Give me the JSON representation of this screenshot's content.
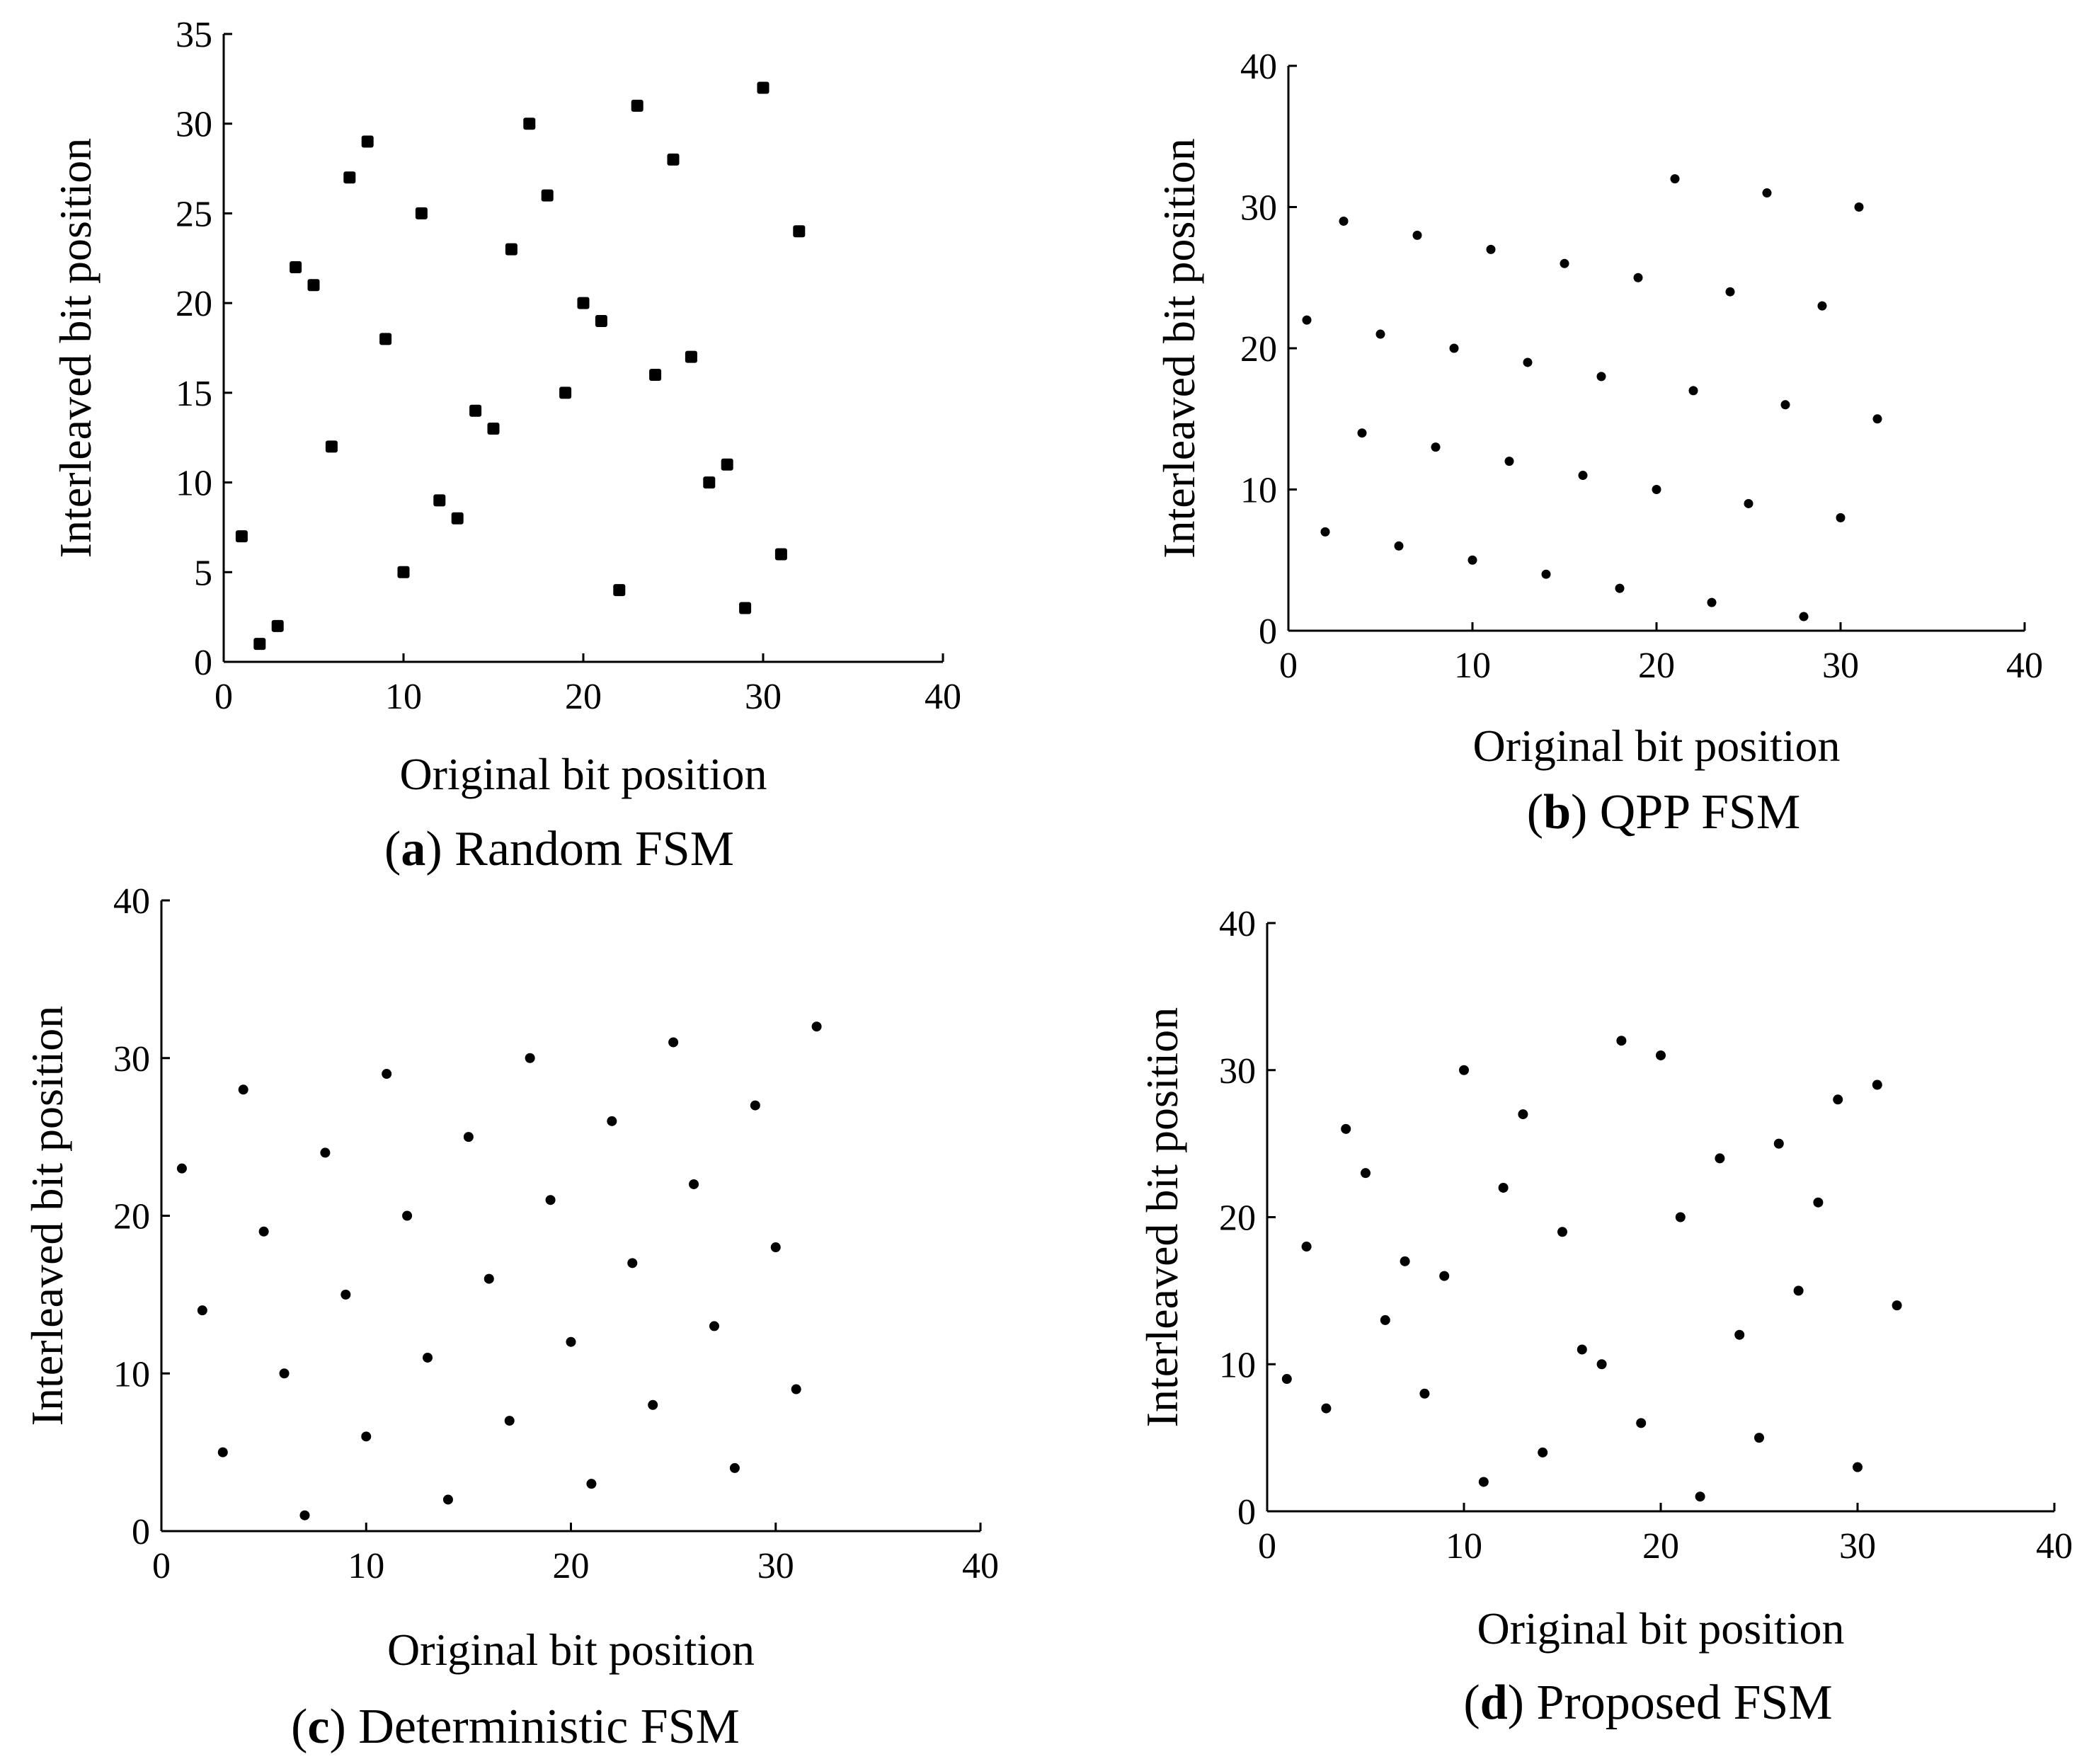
{
  "colors": {
    "marker": "#000000",
    "axis": "#000000",
    "background": "#ffffff"
  },
  "chart_data": [
    {
      "type": "scatter",
      "id": "a",
      "caption_letter": "a",
      "caption_text": ") Random FSM",
      "caption_open": "(",
      "xlabel": "Original bit position",
      "ylabel": "Interleaved bit position",
      "xlim": [
        0,
        40
      ],
      "ylim": [
        0,
        35
      ],
      "xticks": [
        0,
        10,
        20,
        30,
        40
      ],
      "yticks": [
        0,
        5,
        10,
        15,
        20,
        25,
        30,
        35
      ],
      "marker": "square",
      "x": [
        1,
        2,
        3,
        4,
        5,
        6,
        7,
        8,
        9,
        10,
        11,
        12,
        13,
        14,
        15,
        16,
        17,
        18,
        19,
        20,
        21,
        22,
        23,
        24,
        25,
        26,
        27,
        28,
        29,
        30,
        31,
        32
      ],
      "y": [
        7,
        1,
        2,
        22,
        21,
        12,
        27,
        29,
        18,
        5,
        25,
        9,
        8,
        14,
        13,
        23,
        30,
        26,
        15,
        20,
        19,
        4,
        31,
        16,
        28,
        17,
        10,
        11,
        3,
        32,
        6,
        24
      ]
    },
    {
      "type": "scatter",
      "id": "b",
      "caption_letter": "b",
      "caption_text": ") QPP FSM",
      "caption_open": "(",
      "xlabel": "Original bit position",
      "ylabel": "Interleaved bit position",
      "xlim": [
        0,
        40
      ],
      "ylim": [
        0,
        40
      ],
      "xticks": [
        0,
        10,
        20,
        30,
        40
      ],
      "yticks": [
        0,
        10,
        20,
        30,
        40
      ],
      "marker": "circle",
      "x": [
        1,
        2,
        3,
        4,
        5,
        6,
        7,
        8,
        9,
        10,
        11,
        12,
        13,
        14,
        15,
        16,
        17,
        18,
        19,
        20,
        21,
        22,
        23,
        24,
        25,
        26,
        27,
        28,
        29,
        30,
        31,
        32
      ],
      "y": [
        22,
        7,
        29,
        14,
        21,
        6,
        28,
        13,
        20,
        5,
        27,
        12,
        19,
        4,
        26,
        11,
        18,
        3,
        25,
        10,
        32,
        17,
        2,
        24,
        9,
        31,
        16,
        1,
        23,
        8,
        30,
        15
      ]
    },
    {
      "type": "scatter",
      "id": "c",
      "caption_letter": "c",
      "caption_text": ") Deterministic FSM",
      "caption_open": "(",
      "xlabel": "Original bit position",
      "ylabel": "Interleaved bit position",
      "xlim": [
        0,
        40
      ],
      "ylim": [
        0,
        40
      ],
      "xticks": [
        0,
        10,
        20,
        30,
        40
      ],
      "yticks": [
        0,
        10,
        20,
        30,
        40
      ],
      "marker": "circle",
      "x": [
        1,
        2,
        3,
        4,
        5,
        6,
        7,
        8,
        9,
        10,
        11,
        12,
        13,
        14,
        15,
        16,
        17,
        18,
        19,
        20,
        21,
        22,
        23,
        24,
        25,
        26,
        27,
        28,
        29,
        30,
        31,
        32
      ],
      "y": [
        23,
        14,
        5,
        28,
        19,
        10,
        1,
        24,
        15,
        6,
        29,
        20,
        11,
        2,
        25,
        16,
        7,
        30,
        21,
        12,
        3,
        26,
        17,
        8,
        31,
        22,
        13,
        4,
        27,
        18,
        9,
        32
      ]
    },
    {
      "type": "scatter",
      "id": "d",
      "caption_letter": "d",
      "caption_text": ") Proposed FSM",
      "caption_open": "(",
      "xlabel": "Original bit position",
      "ylabel": "Interleaved bit position",
      "xlim": [
        0,
        40
      ],
      "ylim": [
        0,
        40
      ],
      "xticks": [
        0,
        10,
        20,
        30,
        40
      ],
      "yticks": [
        0,
        10,
        20,
        30,
        40
      ],
      "marker": "circle",
      "x": [
        1,
        2,
        3,
        4,
        5,
        6,
        7,
        8,
        9,
        10,
        11,
        12,
        13,
        14,
        15,
        16,
        17,
        18,
        19,
        20,
        21,
        22,
        23,
        24,
        25,
        26,
        27,
        28,
        29,
        30,
        31,
        32
      ],
      "y": [
        9,
        18,
        7,
        26,
        23,
        13,
        17,
        8,
        16,
        30,
        2,
        22,
        27,
        4,
        19,
        11,
        10,
        32,
        6,
        31,
        20,
        1,
        24,
        12,
        5,
        25,
        15,
        21,
        28,
        3,
        29,
        14
      ]
    }
  ]
}
